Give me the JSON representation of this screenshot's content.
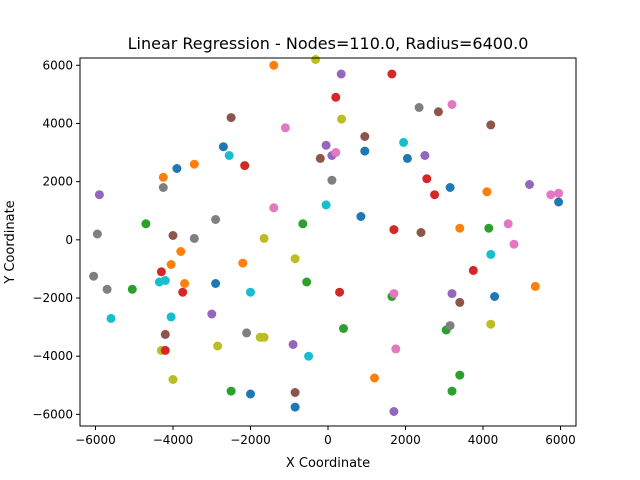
{
  "chart_data": {
    "type": "scatter",
    "title": "Linear Regression - Nodes=110.0, Radius=6400.0",
    "xlabel": "X Coordinate",
    "ylabel": "Y Coordinate",
    "xlim": [
      -6400,
      6400
    ],
    "ylim": [
      -6400,
      6250
    ],
    "xticks": [
      -6000,
      -4000,
      -2000,
      0,
      2000,
      4000,
      6000
    ],
    "yticks": [
      -6000,
      -4000,
      -2000,
      0,
      2000,
      4000,
      6000
    ],
    "grid": false,
    "palette": [
      "#1f77b4",
      "#ff7f0e",
      "#2ca02c",
      "#d62728",
      "#9467bd",
      "#8c564b",
      "#e377c2",
      "#7f7f7f",
      "#bcbd22",
      "#17becf"
    ],
    "points": [
      {
        "x": -1400,
        "y": 6000,
        "c": 1
      },
      {
        "x": -320,
        "y": 6200,
        "c": 8
      },
      {
        "x": 340,
        "y": 5700,
        "c": 4
      },
      {
        "x": 1650,
        "y": 5700,
        "c": 3
      },
      {
        "x": 200,
        "y": 4900,
        "c": 3
      },
      {
        "x": 2350,
        "y": 4550,
        "c": 7
      },
      {
        "x": 2850,
        "y": 4400,
        "c": 5
      },
      {
        "x": 3200,
        "y": 4650,
        "c": 6
      },
      {
        "x": -2500,
        "y": 4200,
        "c": 5
      },
      {
        "x": 350,
        "y": 4150,
        "c": 8
      },
      {
        "x": -1100,
        "y": 3850,
        "c": 6
      },
      {
        "x": 4200,
        "y": 3950,
        "c": 5
      },
      {
        "x": 950,
        "y": 3550,
        "c": 5
      },
      {
        "x": -2700,
        "y": 3200,
        "c": 0
      },
      {
        "x": -50,
        "y": 3250,
        "c": 4
      },
      {
        "x": 1950,
        "y": 3350,
        "c": 9
      },
      {
        "x": -2550,
        "y": 2900,
        "c": 9
      },
      {
        "x": -200,
        "y": 2800,
        "c": 5
      },
      {
        "x": 100,
        "y": 2900,
        "c": 4
      },
      {
        "x": 200,
        "y": 3000,
        "c": 6
      },
      {
        "x": 950,
        "y": 3050,
        "c": 0
      },
      {
        "x": 2050,
        "y": 2800,
        "c": 0
      },
      {
        "x": 2500,
        "y": 2900,
        "c": 4
      },
      {
        "x": -3450,
        "y": 2600,
        "c": 1
      },
      {
        "x": -3900,
        "y": 2450,
        "c": 0
      },
      {
        "x": -2150,
        "y": 2550,
        "c": 3
      },
      {
        "x": -4250,
        "y": 2150,
        "c": 1
      },
      {
        "x": 100,
        "y": 2050,
        "c": 7
      },
      {
        "x": 2550,
        "y": 2100,
        "c": 3
      },
      {
        "x": 3150,
        "y": 1800,
        "c": 0
      },
      {
        "x": -4250,
        "y": 1800,
        "c": 7
      },
      {
        "x": 2750,
        "y": 1550,
        "c": 3
      },
      {
        "x": 4100,
        "y": 1650,
        "c": 1
      },
      {
        "x": 5200,
        "y": 1900,
        "c": 4
      },
      {
        "x": 5750,
        "y": 1550,
        "c": 6
      },
      {
        "x": 5950,
        "y": 1600,
        "c": 6
      },
      {
        "x": 5950,
        "y": 1300,
        "c": 0
      },
      {
        "x": -5900,
        "y": 1550,
        "c": 4
      },
      {
        "x": -50,
        "y": 1200,
        "c": 9
      },
      {
        "x": -1400,
        "y": 1100,
        "c": 6
      },
      {
        "x": 850,
        "y": 800,
        "c": 0
      },
      {
        "x": -2900,
        "y": 700,
        "c": 7
      },
      {
        "x": -4700,
        "y": 550,
        "c": 2
      },
      {
        "x": -650,
        "y": 550,
        "c": 2
      },
      {
        "x": 1700,
        "y": 350,
        "c": 3
      },
      {
        "x": 2400,
        "y": 250,
        "c": 5
      },
      {
        "x": 3400,
        "y": 400,
        "c": 1
      },
      {
        "x": 4150,
        "y": 400,
        "c": 2
      },
      {
        "x": 4650,
        "y": 550,
        "c": 6
      },
      {
        "x": -5950,
        "y": 200,
        "c": 7
      },
      {
        "x": -4000,
        "y": 150,
        "c": 5
      },
      {
        "x": -3450,
        "y": 50,
        "c": 7
      },
      {
        "x": -1650,
        "y": 50,
        "c": 8
      },
      {
        "x": 4800,
        "y": -150,
        "c": 6
      },
      {
        "x": -3800,
        "y": -400,
        "c": 1
      },
      {
        "x": -850,
        "y": -650,
        "c": 8
      },
      {
        "x": 4200,
        "y": -500,
        "c": 9
      },
      {
        "x": -4050,
        "y": -850,
        "c": 1
      },
      {
        "x": -2200,
        "y": -800,
        "c": 1
      },
      {
        "x": -4300,
        "y": -1100,
        "c": 3
      },
      {
        "x": 3750,
        "y": -1050,
        "c": 3
      },
      {
        "x": -6050,
        "y": -1250,
        "c": 7
      },
      {
        "x": -5700,
        "y": -1700,
        "c": 7
      },
      {
        "x": -5050,
        "y": -1700,
        "c": 2
      },
      {
        "x": -4350,
        "y": -1450,
        "c": 9
      },
      {
        "x": -4200,
        "y": -1400,
        "c": 9
      },
      {
        "x": -3700,
        "y": -1500,
        "c": 1
      },
      {
        "x": -3750,
        "y": -1800,
        "c": 3
      },
      {
        "x": -2900,
        "y": -1500,
        "c": 0
      },
      {
        "x": -2000,
        "y": -1800,
        "c": 9
      },
      {
        "x": -550,
        "y": -1450,
        "c": 2
      },
      {
        "x": 300,
        "y": -1800,
        "c": 3
      },
      {
        "x": 1650,
        "y": -1950,
        "c": 2
      },
      {
        "x": 1700,
        "y": -1850,
        "c": 6
      },
      {
        "x": 3200,
        "y": -1850,
        "c": 4
      },
      {
        "x": 4300,
        "y": -1950,
        "c": 0
      },
      {
        "x": 5350,
        "y": -1600,
        "c": 1
      },
      {
        "x": 3400,
        "y": -2150,
        "c": 5
      },
      {
        "x": -5600,
        "y": -2700,
        "c": 9
      },
      {
        "x": -4050,
        "y": -2650,
        "c": 9
      },
      {
        "x": -3000,
        "y": -2550,
        "c": 4
      },
      {
        "x": -4200,
        "y": -3250,
        "c": 5
      },
      {
        "x": -2100,
        "y": -3200,
        "c": 7
      },
      {
        "x": -1750,
        "y": -3350,
        "c": 8
      },
      {
        "x": -1650,
        "y": -3350,
        "c": 8
      },
      {
        "x": 400,
        "y": -3050,
        "c": 2
      },
      {
        "x": 3050,
        "y": -3100,
        "c": 2
      },
      {
        "x": 3150,
        "y": -2950,
        "c": 7
      },
      {
        "x": 4200,
        "y": -2900,
        "c": 8
      },
      {
        "x": -4300,
        "y": -3800,
        "c": 8
      },
      {
        "x": -4200,
        "y": -3800,
        "c": 3
      },
      {
        "x": -2850,
        "y": -3650,
        "c": 8
      },
      {
        "x": -900,
        "y": -3600,
        "c": 4
      },
      {
        "x": -500,
        "y": -4000,
        "c": 9
      },
      {
        "x": 1750,
        "y": -3750,
        "c": 6
      },
      {
        "x": -4000,
        "y": -4800,
        "c": 8
      },
      {
        "x": 1200,
        "y": -4750,
        "c": 1
      },
      {
        "x": 3400,
        "y": -4650,
        "c": 2
      },
      {
        "x": -2500,
        "y": -5200,
        "c": 2
      },
      {
        "x": -2000,
        "y": -5300,
        "c": 0
      },
      {
        "x": -850,
        "y": -5250,
        "c": 5
      },
      {
        "x": 3200,
        "y": -5200,
        "c": 2
      },
      {
        "x": -850,
        "y": -5750,
        "c": 0
      },
      {
        "x": 1700,
        "y": -5900,
        "c": 4
      }
    ]
  }
}
